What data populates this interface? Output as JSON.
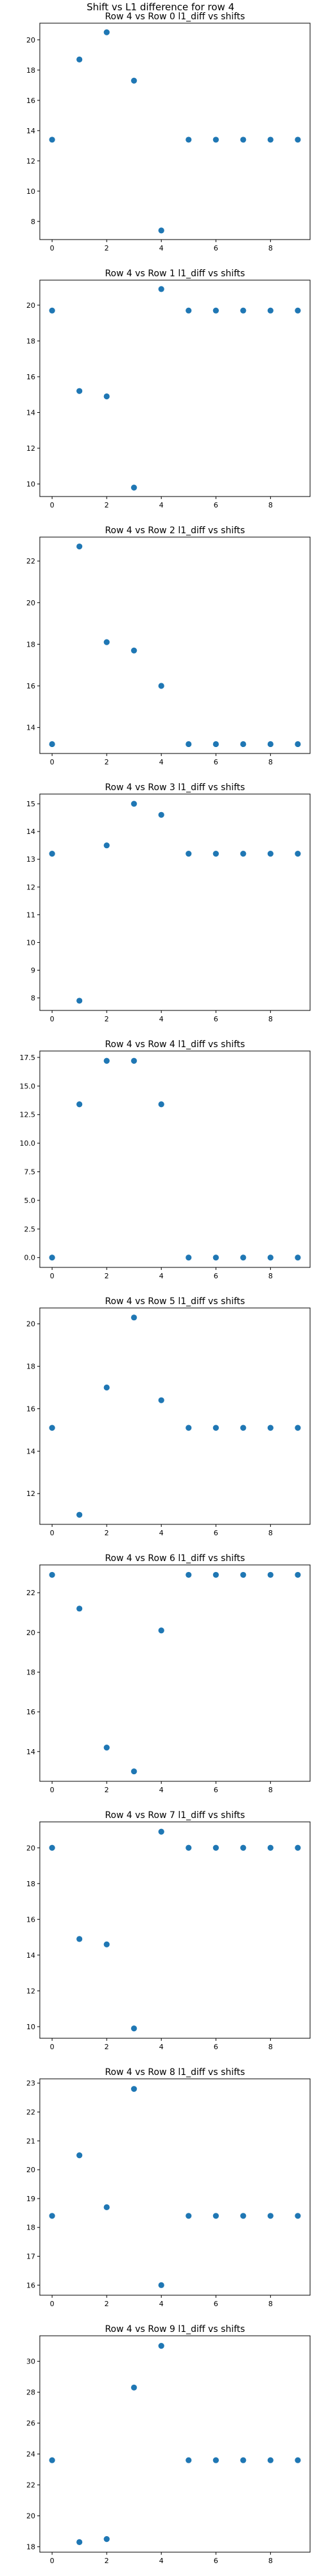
{
  "figure": {
    "suptitle": "Shift vs L1 difference for row 4"
  },
  "chart_data": [
    {
      "type": "scatter",
      "title": "Row 4 vs Row 0 l1_diff vs shifts",
      "x": [
        0,
        1,
        2,
        3,
        4,
        5,
        6,
        7,
        8,
        9
      ],
      "y": [
        13.4,
        18.7,
        20.5,
        17.3,
        7.4,
        13.4,
        13.4,
        13.4,
        13.4,
        13.4
      ],
      "xticks": [
        0,
        2,
        4,
        6,
        8
      ],
      "yticks": [
        8,
        10,
        12,
        14,
        16,
        18,
        20
      ],
      "xlim": [
        -0.45,
        9.45
      ],
      "ylim": [
        6.8,
        21.1
      ],
      "marker_color": "#1f77b4"
    },
    {
      "type": "scatter",
      "title": "Row 4 vs Row 1 l1_diff vs shifts",
      "x": [
        0,
        1,
        2,
        3,
        4,
        5,
        6,
        7,
        8,
        9
      ],
      "y": [
        19.7,
        15.2,
        14.9,
        9.8,
        20.9,
        19.7,
        19.7,
        19.7,
        19.7,
        19.7
      ],
      "xticks": [
        0,
        2,
        4,
        6,
        8
      ],
      "yticks": [
        10,
        12,
        14,
        16,
        18,
        20
      ],
      "xlim": [
        -0.45,
        9.45
      ],
      "ylim": [
        9.3,
        21.4
      ],
      "marker_color": "#1f77b4"
    },
    {
      "type": "scatter",
      "title": "Row 4 vs Row 2 l1_diff vs shifts",
      "x": [
        0,
        1,
        2,
        3,
        4,
        5,
        6,
        7,
        8,
        9
      ],
      "y": [
        13.2,
        22.7,
        18.1,
        17.7,
        16.0,
        13.2,
        13.2,
        13.2,
        13.2,
        13.2
      ],
      "xticks": [
        0,
        2,
        4,
        6,
        8
      ],
      "yticks": [
        14,
        16,
        18,
        20,
        22
      ],
      "xlim": [
        -0.45,
        9.45
      ],
      "ylim": [
        12.75,
        23.15
      ],
      "marker_color": "#1f77b4"
    },
    {
      "type": "scatter",
      "title": "Row 4 vs Row 3 l1_diff vs shifts",
      "x": [
        0,
        1,
        2,
        3,
        4,
        5,
        6,
        7,
        8,
        9
      ],
      "y": [
        13.2,
        7.9,
        13.5,
        15.0,
        14.6,
        13.2,
        13.2,
        13.2,
        13.2,
        13.2
      ],
      "xticks": [
        0,
        2,
        4,
        6,
        8
      ],
      "yticks": [
        8,
        9,
        10,
        11,
        12,
        13,
        14,
        15
      ],
      "xlim": [
        -0.45,
        9.45
      ],
      "ylim": [
        7.55,
        15.35
      ],
      "marker_color": "#1f77b4"
    },
    {
      "type": "scatter",
      "title": "Row 4 vs Row 4 l1_diff vs shifts",
      "x": [
        0,
        1,
        2,
        3,
        4,
        5,
        6,
        7,
        8,
        9
      ],
      "y": [
        0.0,
        13.4,
        17.2,
        17.2,
        13.4,
        0.0,
        0.0,
        0.0,
        0.0,
        0.0
      ],
      "xticks": [
        0,
        2,
        4,
        6,
        8
      ],
      "yticks": [
        0.0,
        2.5,
        5.0,
        7.5,
        10.0,
        12.5,
        15.0,
        17.5
      ],
      "ytick_labels": [
        "0.0",
        "2.5",
        "5.0",
        "7.5",
        "10.0",
        "12.5",
        "15.0",
        "17.5"
      ],
      "xlim": [
        -0.45,
        9.45
      ],
      "ylim": [
        -0.86,
        18.06
      ],
      "marker_color": "#1f77b4"
    },
    {
      "type": "scatter",
      "title": "Row 4 vs Row 5 l1_diff vs shifts",
      "x": [
        0,
        1,
        2,
        3,
        4,
        5,
        6,
        7,
        8,
        9
      ],
      "y": [
        15.1,
        11.0,
        17.0,
        20.3,
        16.4,
        15.1,
        15.1,
        15.1,
        15.1,
        15.1
      ],
      "xticks": [
        0,
        2,
        4,
        6,
        8
      ],
      "yticks": [
        12,
        14,
        16,
        18,
        20
      ],
      "xlim": [
        -0.45,
        9.45
      ],
      "ylim": [
        10.55,
        20.75
      ],
      "marker_color": "#1f77b4"
    },
    {
      "type": "scatter",
      "title": "Row 4 vs Row 6 l1_diff vs shifts",
      "x": [
        0,
        1,
        2,
        3,
        4,
        5,
        6,
        7,
        8,
        9
      ],
      "y": [
        22.9,
        21.2,
        14.2,
        13.0,
        20.1,
        22.9,
        22.9,
        22.9,
        22.9,
        22.9
      ],
      "xticks": [
        0,
        2,
        4,
        6,
        8
      ],
      "yticks": [
        14,
        16,
        18,
        20,
        22
      ],
      "xlim": [
        -0.45,
        9.45
      ],
      "ylim": [
        12.5,
        23.4
      ],
      "marker_color": "#1f77b4"
    },
    {
      "type": "scatter",
      "title": "Row 4 vs Row 7 l1_diff vs shifts",
      "x": [
        0,
        1,
        2,
        3,
        4,
        5,
        6,
        7,
        8,
        9
      ],
      "y": [
        20.0,
        14.9,
        14.6,
        9.9,
        20.9,
        20.0,
        20.0,
        20.0,
        20.0,
        20.0
      ],
      "xticks": [
        0,
        2,
        4,
        6,
        8
      ],
      "yticks": [
        10,
        12,
        14,
        16,
        18,
        20
      ],
      "xlim": [
        -0.45,
        9.45
      ],
      "ylim": [
        9.35,
        21.45
      ],
      "marker_color": "#1f77b4"
    },
    {
      "type": "scatter",
      "title": "Row 4 vs Row 8 l1_diff vs shifts",
      "x": [
        0,
        1,
        2,
        3,
        4,
        5,
        6,
        7,
        8,
        9
      ],
      "y": [
        18.4,
        20.5,
        18.7,
        22.8,
        16.0,
        18.4,
        18.4,
        18.4,
        18.4,
        18.4
      ],
      "xticks": [
        0,
        2,
        4,
        6,
        8
      ],
      "yticks": [
        16,
        17,
        18,
        19,
        20,
        21,
        22,
        23
      ],
      "xlim": [
        -0.45,
        9.45
      ],
      "ylim": [
        15.65,
        23.15
      ],
      "marker_color": "#1f77b4"
    },
    {
      "type": "scatter",
      "title": "Row 4 vs Row 9 l1_diff vs shifts",
      "x": [
        0,
        1,
        2,
        3,
        4,
        5,
        6,
        7,
        8,
        9
      ],
      "y": [
        23.6,
        18.3,
        18.5,
        28.3,
        31.0,
        23.6,
        23.6,
        23.6,
        23.6,
        23.6
      ],
      "xticks": [
        0,
        2,
        4,
        6,
        8
      ],
      "yticks": [
        18,
        20,
        22,
        24,
        26,
        28,
        30
      ],
      "xlim": [
        -0.45,
        9.45
      ],
      "ylim": [
        17.65,
        31.65
      ],
      "marker_color": "#1f77b4"
    }
  ]
}
